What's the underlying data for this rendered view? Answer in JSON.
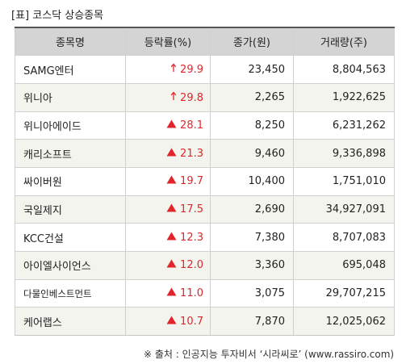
{
  "title": "[표] 코스닥 상승종목",
  "headers": [
    "종목명",
    "등락률(%)",
    "종가(원)",
    "거래량(주)"
  ],
  "rows": [
    {
      "name": "SAMG엔터",
      "icon": "up-limit-arrow",
      "change": "29.9",
      "close": "23,450",
      "volume": "8,804,563"
    },
    {
      "name": "위니아",
      "icon": "up-limit-arrow",
      "change": "29.8",
      "close": "2,265",
      "volume": "1,922,625"
    },
    {
      "name": "위니아에이드",
      "icon": "up-triangle",
      "change": "28.1",
      "close": "8,250",
      "volume": "6,231,262"
    },
    {
      "name": "캐리소프트",
      "icon": "up-triangle",
      "change": "21.3",
      "close": "9,460",
      "volume": "9,336,898"
    },
    {
      "name": "싸이버원",
      "icon": "up-triangle",
      "change": "19.7",
      "close": "10,400",
      "volume": "1,751,010"
    },
    {
      "name": "국일제지",
      "icon": "up-triangle",
      "change": "17.5",
      "close": "2,690",
      "volume": "34,927,091"
    },
    {
      "name": "KCC건설",
      "icon": "up-triangle",
      "change": "12.3",
      "close": "7,380",
      "volume": "8,707,083"
    },
    {
      "name": "아이엘사이언스",
      "icon": "up-triangle",
      "change": "12.0",
      "close": "3,360",
      "volume": "695,048"
    },
    {
      "name": "다물인베스트먼트",
      "icon": "up-triangle",
      "change": "11.0",
      "close": "3,075",
      "volume": "29,707,215"
    },
    {
      "name": "케어랩스",
      "icon": "up-triangle",
      "change": "10.7",
      "close": "7,870",
      "volume": "12,025,062"
    }
  ],
  "footer": "※ 출처 : 인공지능 투자비서 ‘시라씨로’ (www.rassiro.com)",
  "colors": {
    "up": "#e0262c",
    "header_bg": "#d4d4d4",
    "stripe_bg": "#f4f4ee"
  }
}
